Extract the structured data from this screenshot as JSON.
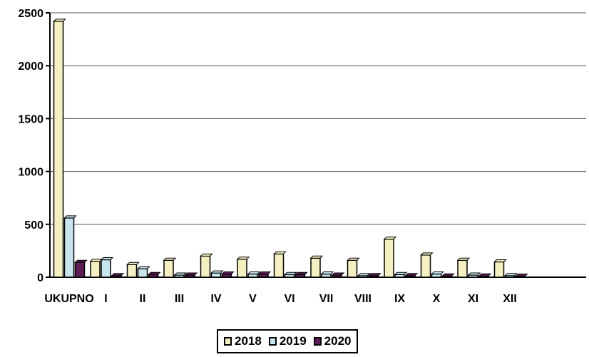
{
  "chart_data": {
    "type": "bar",
    "categories": [
      "UKUPNO",
      "I",
      "II",
      "III",
      "IV",
      "V",
      "VI",
      "VII",
      "VIII",
      "IX",
      "X",
      "XI",
      "XII"
    ],
    "series": [
      {
        "name": "2018",
        "color": "#f5f0c2",
        "values": [
          2420,
          150,
          120,
          160,
          200,
          170,
          220,
          180,
          160,
          360,
          210,
          160,
          145
        ]
      },
      {
        "name": "2019",
        "color": "#c9e6ee",
        "values": [
          560,
          165,
          80,
          20,
          40,
          30,
          25,
          30,
          15,
          25,
          30,
          20,
          15
        ]
      },
      {
        "name": "2020",
        "color": "#5b1e56",
        "values": [
          140,
          15,
          25,
          20,
          30,
          30,
          25,
          20,
          15,
          15,
          12,
          12,
          10
        ]
      }
    ],
    "ylim": [
      0,
      2500
    ],
    "yticks": [
      0,
      500,
      1000,
      1500,
      2000,
      2500
    ],
    "grid": true,
    "legend_position": "bottom",
    "title": "",
    "xlabel": "",
    "ylabel": ""
  }
}
